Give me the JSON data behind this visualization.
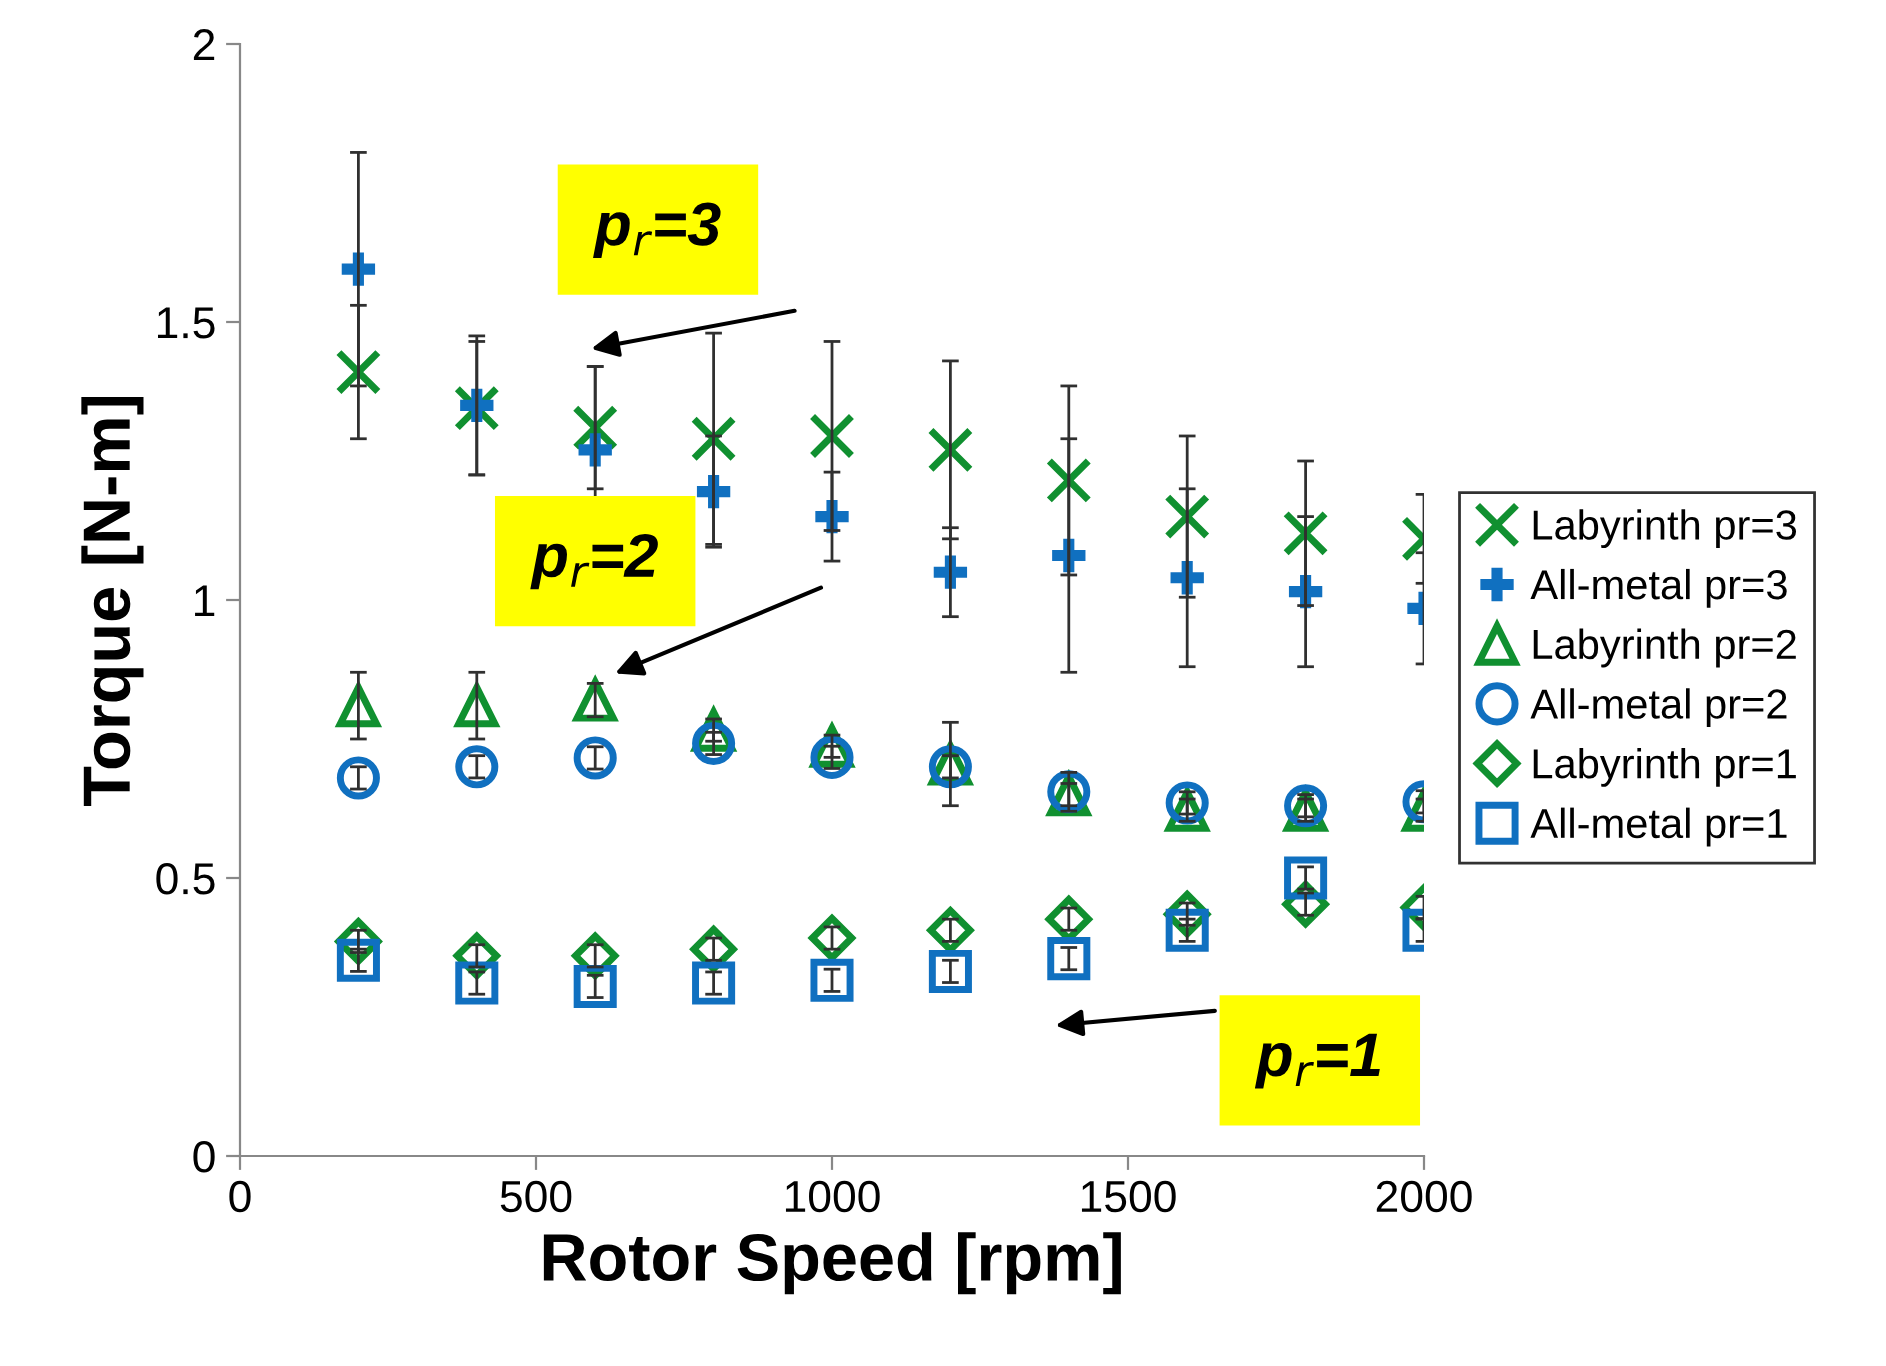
{
  "chart_data": {
    "type": "scatter",
    "xlabel": "Rotor Speed [rpm]",
    "ylabel": "Torque [N-m]",
    "x": [
      200,
      400,
      600,
      800,
      1000,
      1200,
      1400,
      1600,
      1800,
      2000
    ],
    "xlim": [
      0,
      2000
    ],
    "xticks": [
      0,
      500,
      1000,
      1500,
      2000
    ],
    "ylim": [
      0,
      2
    ],
    "yticks": [
      0,
      0.5,
      1,
      1.5,
      2
    ],
    "grid": false,
    "legend": "right",
    "series": [
      {
        "name": "Labyrinth pr=3",
        "color": "#109030",
        "marker": "x",
        "values": [
          1.41,
          1.345,
          1.31,
          1.29,
          1.295,
          1.27,
          1.215,
          1.15,
          1.12,
          1.11
        ],
        "errors": [
          0.12,
          0.12,
          0.11,
          0.19,
          0.17,
          0.16,
          0.17,
          0.145,
          0.13,
          0.08
        ]
      },
      {
        "name": "All-metal pr=3",
        "color": "#1070c0",
        "marker": "cross",
        "values": [
          1.595,
          1.35,
          1.27,
          1.195,
          1.15,
          1.05,
          1.08,
          1.04,
          1.015,
          0.985
        ],
        "errors": [
          0.21,
          0.125,
          0.15,
          0.1,
          0.08,
          0.08,
          0.21,
          0.16,
          0.135,
          0.1
        ]
      },
      {
        "name": "Labyrinth pr=2",
        "color": "#109030",
        "marker": "triangle",
        "values": [
          0.81,
          0.81,
          0.82,
          0.766,
          0.737,
          0.705,
          0.65,
          0.622,
          0.622,
          0.622
        ],
        "errors": [
          0.06,
          0.06,
          0.03,
          0.02,
          0.02,
          0.075,
          0.02,
          0.02,
          0.02,
          0.02
        ]
      },
      {
        "name": "All-metal pr=2",
        "color": "#1070c0",
        "marker": "circle",
        "values": [
          0.68,
          0.7,
          0.716,
          0.742,
          0.717,
          0.7,
          0.655,
          0.635,
          0.63,
          0.637
        ],
        "errors": [
          0.02,
          0.02,
          0.02,
          0.02,
          0.02,
          0.02,
          0.035,
          0.02,
          0.02,
          0.02
        ]
      },
      {
        "name": "Labyrinth pr=1",
        "color": "#109030",
        "marker": "diamond",
        "values": [
          0.386,
          0.36,
          0.36,
          0.372,
          0.392,
          0.406,
          0.426,
          0.435,
          0.453,
          0.447
        ],
        "errors": [
          0.02,
          0.02,
          0.02,
          0.02,
          0.02,
          0.02,
          0.02,
          0.02,
          0.02,
          0.02
        ]
      },
      {
        "name": "All-metal pr=1",
        "color": "#1070c0",
        "marker": "square",
        "values": [
          0.352,
          0.311,
          0.305,
          0.311,
          0.316,
          0.332,
          0.355,
          0.406,
          0.5,
          0.406
        ],
        "errors": [
          0.02,
          0.02,
          0.02,
          0.02,
          0.02,
          0.02,
          0.02,
          0.02,
          0.02,
          0.02
        ]
      }
    ],
    "annotations": [
      "p$_{r}$=3",
      "p$_{r}$=2",
      "p$_{r}$=1"
    ]
  }
}
